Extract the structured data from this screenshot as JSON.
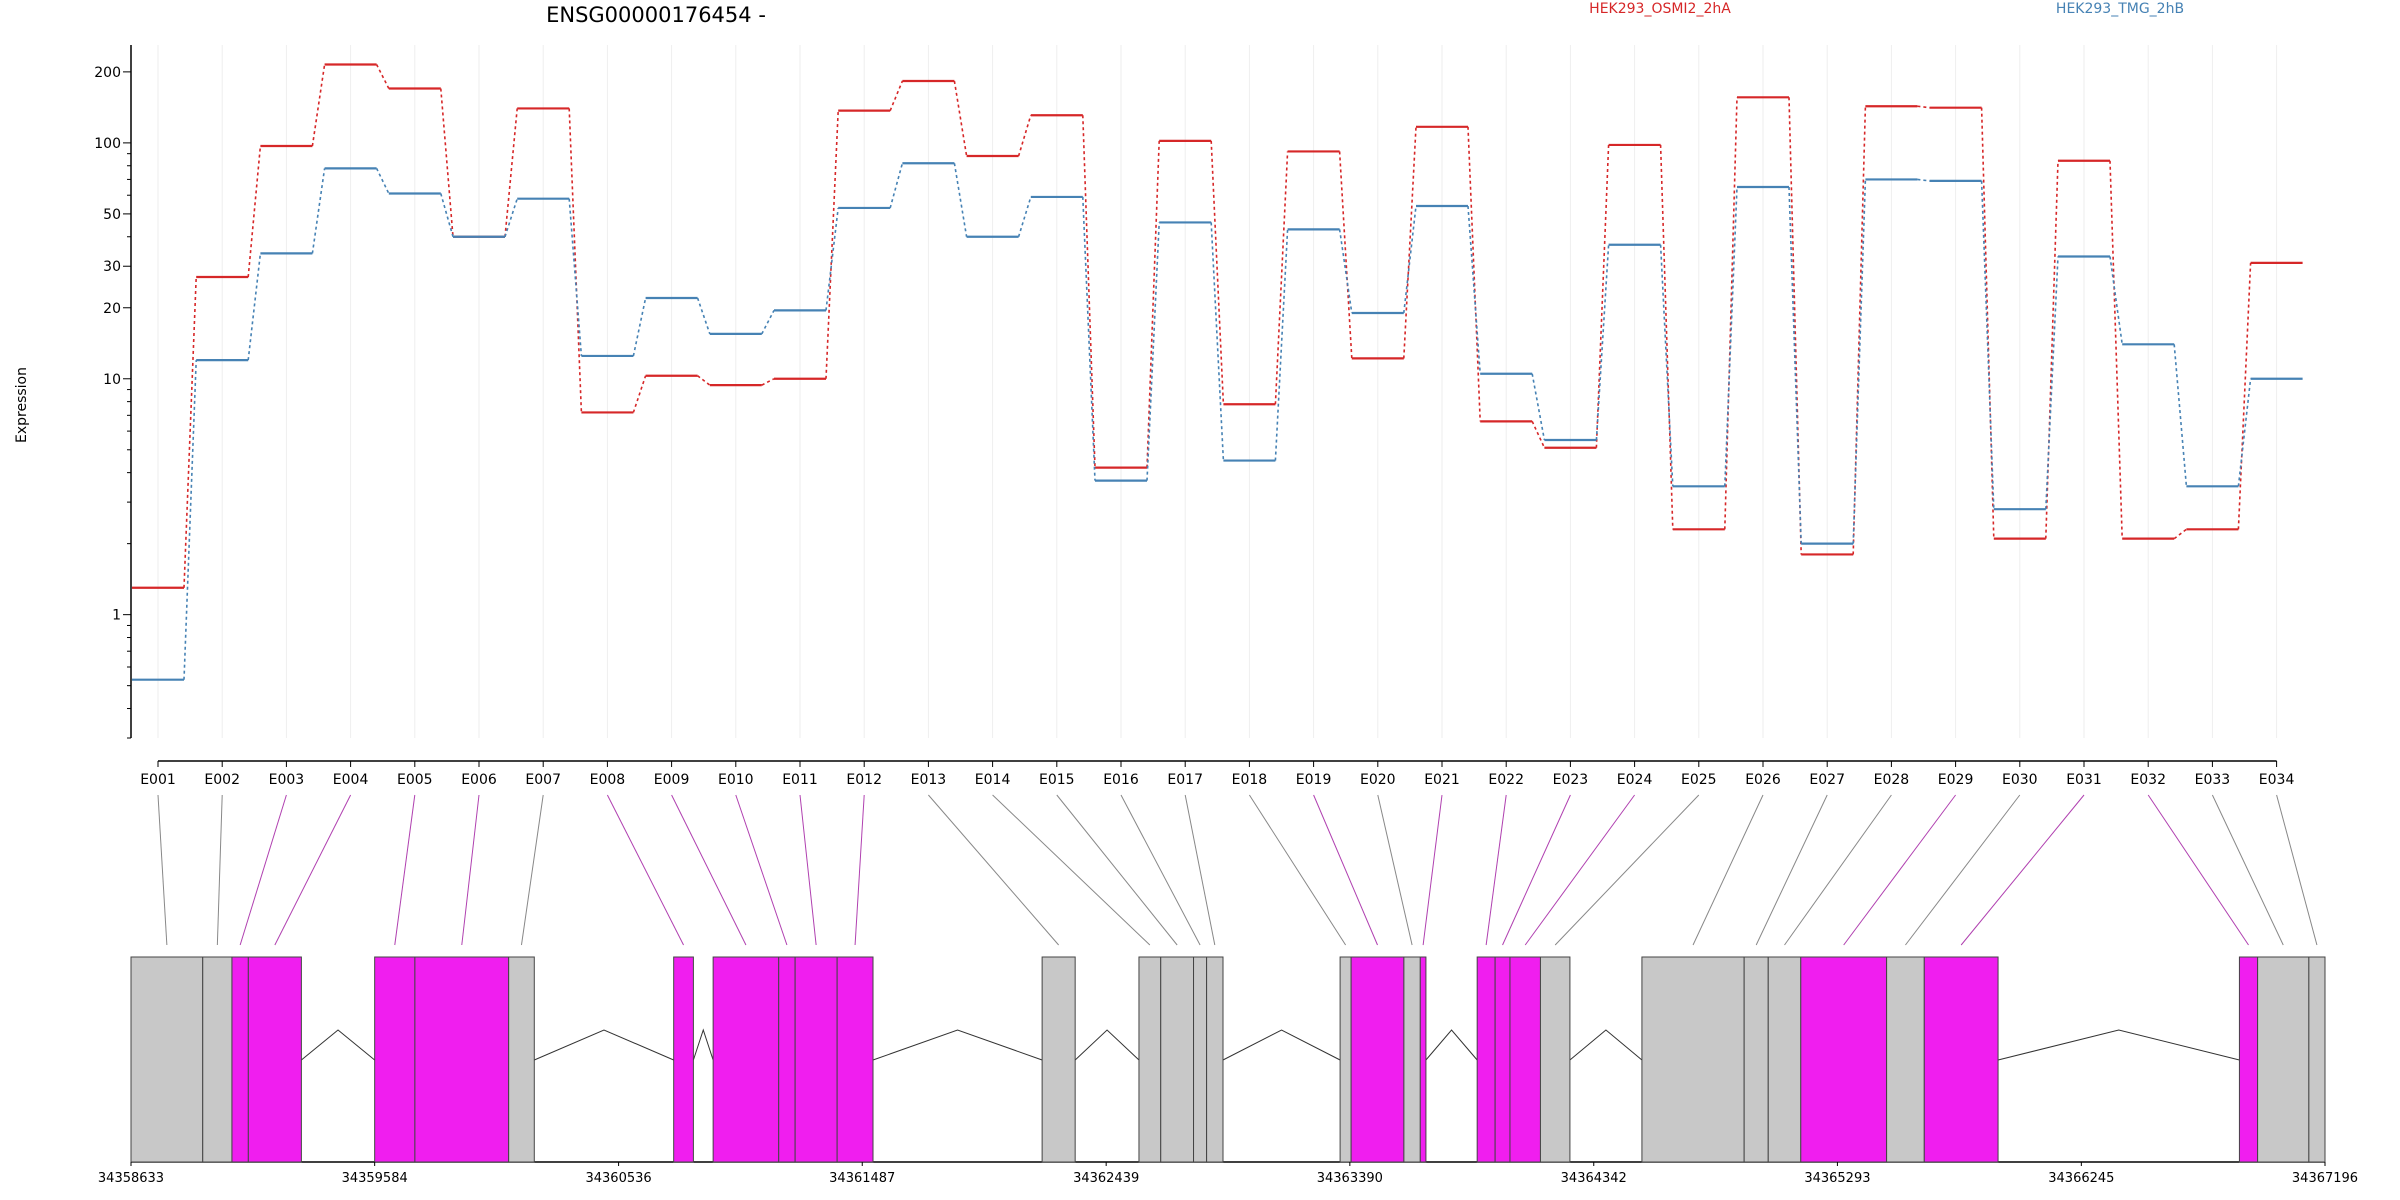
{
  "chart_data": {
    "type": "line",
    "title": "ENSG00000176454 -",
    "ylabel": "Expression",
    "yscale": "log",
    "ylim": [
      0.3,
      260
    ],
    "yticks": [
      "1",
      "10",
      "20",
      "30",
      "50",
      "100",
      "200"
    ],
    "grid": true,
    "legend_position": "top-right",
    "categories": [
      "E001",
      "E002",
      "E003",
      "E004",
      "E005",
      "E006",
      "E007",
      "E008",
      "E009",
      "E010",
      "E011",
      "E012",
      "E013",
      "E014",
      "E015",
      "E016",
      "E017",
      "E018",
      "E019",
      "E020",
      "E021",
      "E022",
      "E023",
      "E024",
      "E025",
      "E026",
      "E027",
      "E028",
      "E029",
      "E030",
      "E031",
      "E032",
      "E033",
      "E034"
    ],
    "series": [
      {
        "name": "HEK293_OSMI2_2hA",
        "color": "#d62728",
        "values": [
          1.3,
          27,
          97,
          215,
          170,
          40,
          140,
          7.2,
          10.3,
          9.4,
          10,
          137,
          183,
          88,
          131,
          4.2,
          102,
          7.8,
          92,
          12.2,
          117,
          6.6,
          5.1,
          98,
          2.3,
          156,
          1.8,
          143,
          141,
          2.1,
          84,
          2.1,
          2.3,
          31
        ]
      },
      {
        "name": "HEK293_TMG_2hB",
        "color": "#4682b4",
        "values": [
          0.53,
          12,
          34,
          78,
          61,
          40,
          58,
          12.5,
          22,
          15.5,
          19.5,
          53,
          82,
          40,
          59,
          3.7,
          46,
          4.5,
          43,
          19,
          54,
          10.5,
          5.5,
          37,
          3.5,
          65,
          2.0,
          70,
          69,
          2.8,
          33,
          14,
          3.5,
          10
        ]
      }
    ],
    "gene_model": {
      "coordinates": [
        "34358633",
        "34359584",
        "34360536",
        "34361487",
        "34362439",
        "34363390",
        "34364342",
        "34365293",
        "34366245",
        "34367196"
      ],
      "genomic_range": [
        34358633,
        34367196
      ],
      "coordinate_ticks": [
        34358633,
        34359584,
        34360536,
        34361487,
        34362439,
        34363390,
        34364342,
        34365293,
        34366245,
        34367196
      ],
      "exon_color": "#c8c8c8",
      "highlight_color": "#f01eef",
      "segments": [
        {
          "id": "E001",
          "start": 34358633,
          "end": 34358913,
          "highlight": false
        },
        {
          "id": "E002",
          "start": 34358913,
          "end": 34359027,
          "highlight": false
        },
        {
          "id": "E003",
          "start": 34359027,
          "end": 34359091,
          "highlight": true
        },
        {
          "id": "E004",
          "start": 34359091,
          "end": 34359298,
          "highlight": true
        },
        {
          "id": "E005",
          "start": 34359584,
          "end": 34359741,
          "highlight": true
        },
        {
          "id": "E006",
          "start": 34359741,
          "end": 34360107,
          "highlight": true
        },
        {
          "id": "E007",
          "start": 34360107,
          "end": 34360207,
          "highlight": false
        },
        {
          "id": "E008",
          "start": 34360751,
          "end": 34360828,
          "highlight": true
        },
        {
          "id": "E009",
          "start": 34360905,
          "end": 34361161,
          "highlight": true
        },
        {
          "id": "E010",
          "start": 34361161,
          "end": 34361225,
          "highlight": true
        },
        {
          "id": "E011",
          "start": 34361225,
          "end": 34361389,
          "highlight": true
        },
        {
          "id": "E012",
          "start": 34361389,
          "end": 34361529,
          "highlight": true
        },
        {
          "id": "E013",
          "start": 34362189,
          "end": 34362318,
          "highlight": false
        },
        {
          "id": "E014",
          "start": 34362567,
          "end": 34362652,
          "highlight": false
        },
        {
          "id": "E015",
          "start": 34362652,
          "end": 34362780,
          "highlight": false
        },
        {
          "id": "E016",
          "start": 34362780,
          "end": 34362831,
          "highlight": false
        },
        {
          "id": "E017",
          "start": 34362831,
          "end": 34362895,
          "highlight": false
        },
        {
          "id": "E018",
          "start": 34363352,
          "end": 34363395,
          "highlight": false
        },
        {
          "id": "E019",
          "start": 34363395,
          "end": 34363601,
          "highlight": true
        },
        {
          "id": "E020",
          "start": 34363601,
          "end": 34363665,
          "highlight": false
        },
        {
          "id": "E021",
          "start": 34363665,
          "end": 34363687,
          "highlight": true
        },
        {
          "id": "E022",
          "start": 34363887,
          "end": 34363957,
          "highlight": true
        },
        {
          "id": "E023",
          "start": 34363957,
          "end": 34364015,
          "highlight": true
        },
        {
          "id": "E024",
          "start": 34364015,
          "end": 34364134,
          "highlight": true
        },
        {
          "id": "E025",
          "start": 34364134,
          "end": 34364249,
          "highlight": false
        },
        {
          "id": "E026",
          "start": 34364530,
          "end": 34364929,
          "highlight": false
        },
        {
          "id": "E027",
          "start": 34364929,
          "end": 34365023,
          "highlight": false
        },
        {
          "id": "E028",
          "start": 34365023,
          "end": 34365150,
          "highlight": false
        },
        {
          "id": "E029",
          "start": 34365150,
          "end": 34365485,
          "highlight": true
        },
        {
          "id": "E030",
          "start": 34365485,
          "end": 34365632,
          "highlight": false
        },
        {
          "id": "E031",
          "start": 34365632,
          "end": 34365920,
          "highlight": true
        },
        {
          "id": "E032",
          "start": 34366862,
          "end": 34366933,
          "highlight": true
        },
        {
          "id": "E033",
          "start": 34366933,
          "end": 34367133,
          "highlight": false
        },
        {
          "id": "E034",
          "start": 34367133,
          "end": 34367196,
          "highlight": false
        }
      ],
      "introns": [
        [
          34359298,
          34359584
        ],
        [
          34360207,
          34360751
        ],
        [
          34360828,
          34360905
        ],
        [
          34361529,
          34362189
        ],
        [
          34362318,
          34362567
        ],
        [
          34362895,
          34363352
        ],
        [
          34363687,
          34363887
        ],
        [
          34364249,
          34364530
        ],
        [
          34365920,
          34366862
        ]
      ]
    }
  }
}
